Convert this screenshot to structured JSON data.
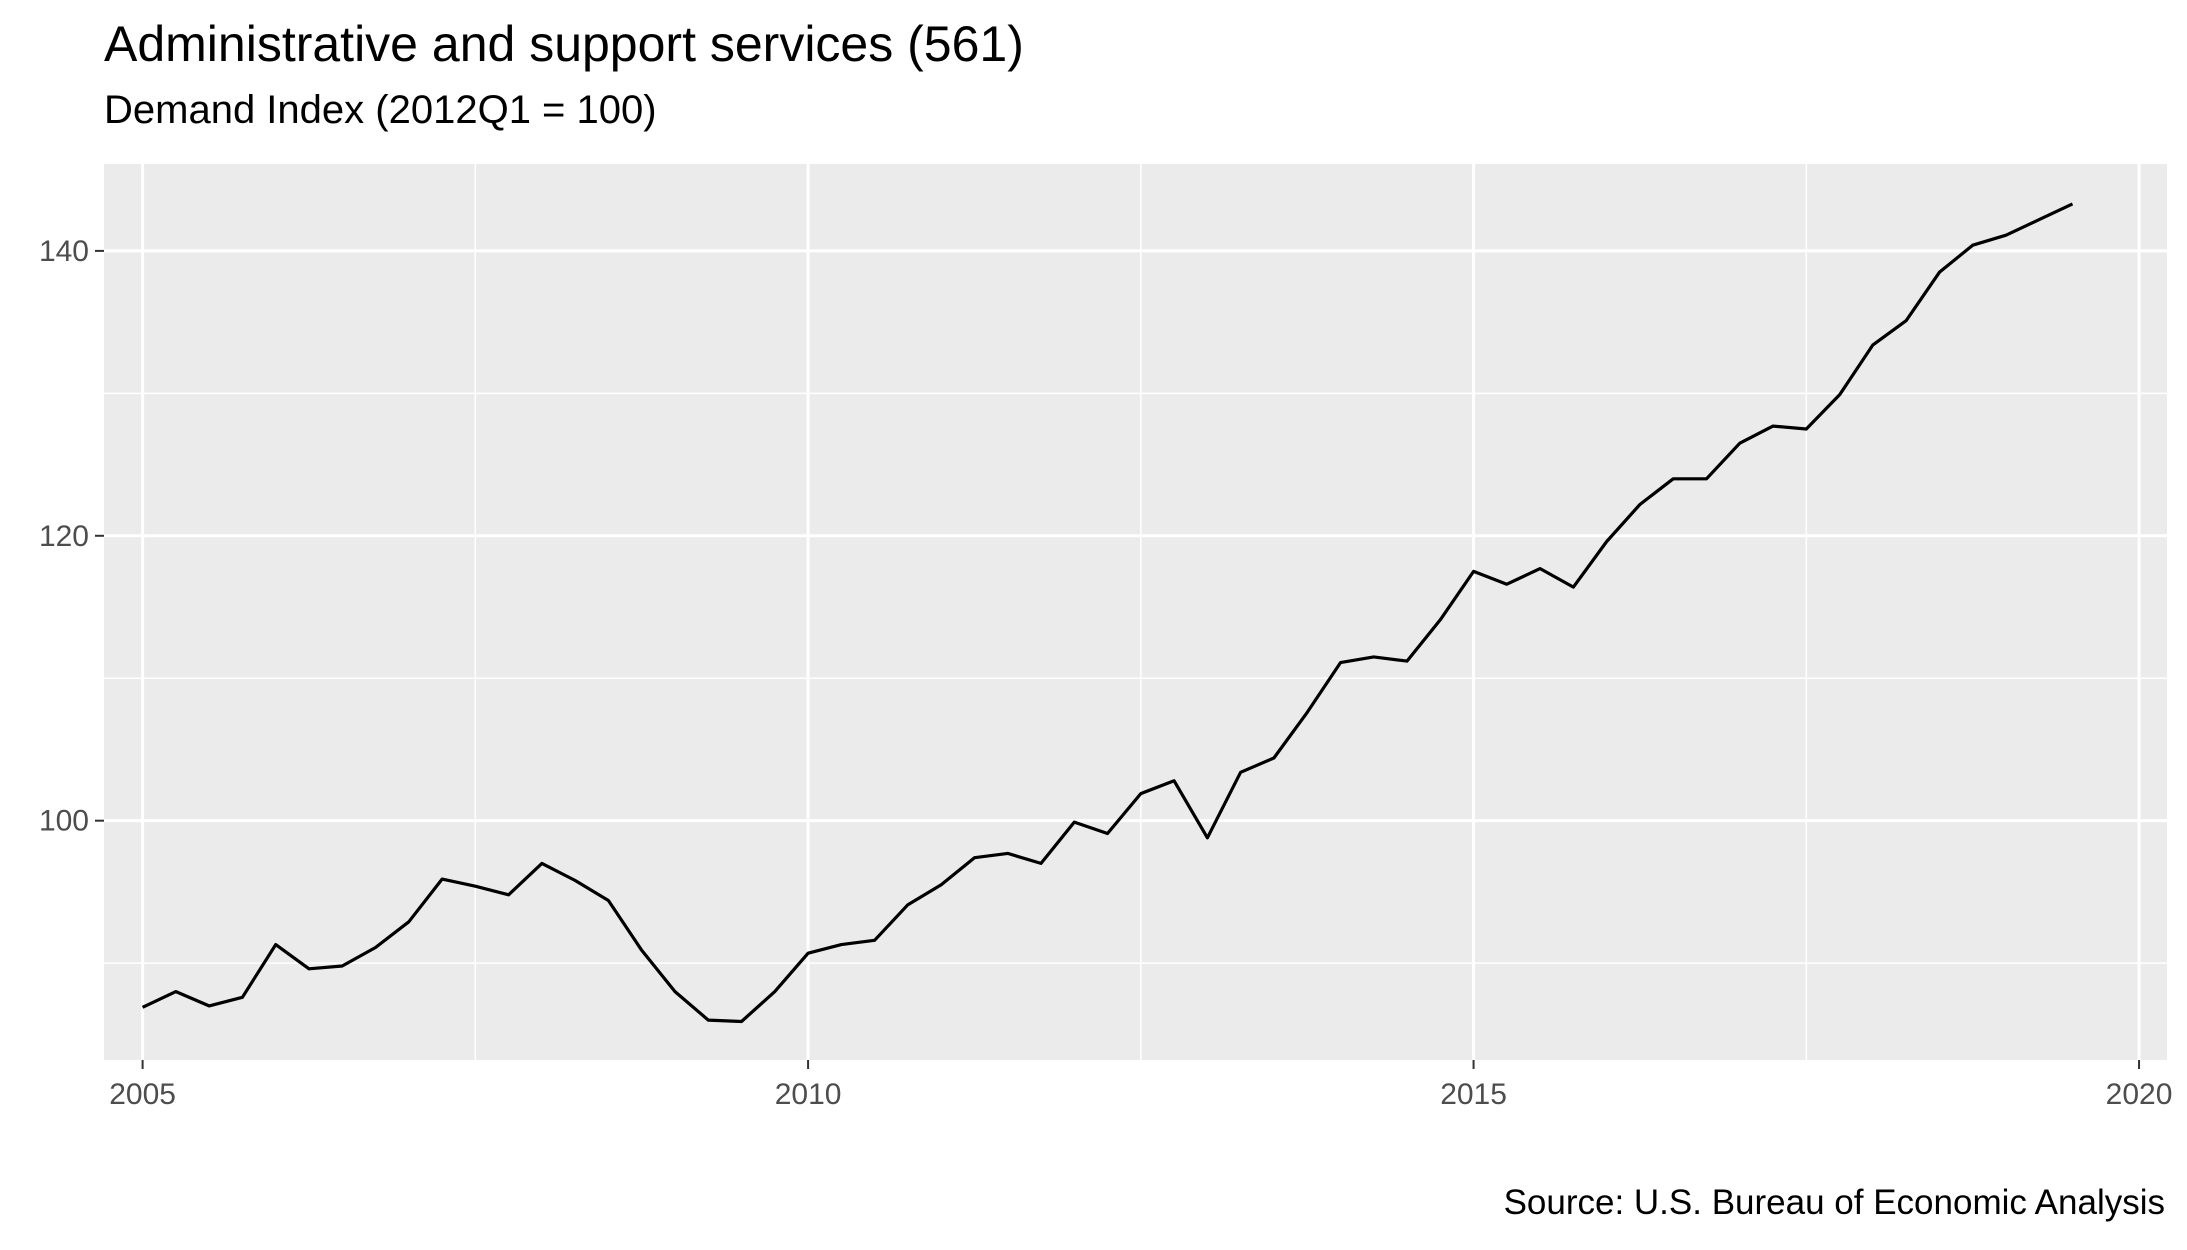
{
  "chart_data": {
    "type": "line",
    "title": "Administrative and support services (561)",
    "subtitle": "Demand Index (2012Q1 = 100)",
    "caption": "Source: U.S. Bureau of Economic Analysis",
    "xlabel": "",
    "ylabel": "",
    "xlim": [
      2004.71,
      2020.21
    ],
    "ylim": [
      83.2,
      146.1
    ],
    "x_ticks": [
      2005,
      2010,
      2015,
      2020
    ],
    "y_ticks": [
      100,
      120,
      140
    ],
    "grid": true,
    "legend": "none",
    "colors": {
      "panel": "#ebebeb",
      "grid": "#ffffff",
      "line": "#000000",
      "axis_text": "#4d4d4d"
    },
    "series": [
      {
        "x": [
          2005.0,
          2005.25,
          2005.5,
          2005.75,
          2006.0,
          2006.25,
          2006.5,
          2006.75,
          2007.0,
          2007.25,
          2007.5,
          2007.75,
          2008.0,
          2008.25,
          2008.5,
          2008.75,
          2009.0,
          2009.25,
          2009.5,
          2009.75,
          2010.0,
          2010.25,
          2010.5,
          2010.75,
          2011.0,
          2011.25,
          2011.5,
          2011.75,
          2012.0,
          2012.25,
          2012.5,
          2012.75,
          2013.0,
          2013.25,
          2013.5,
          2013.75,
          2014.0,
          2014.25,
          2014.5,
          2014.75,
          2015.0,
          2015.25,
          2015.5,
          2015.75,
          2016.0,
          2016.25,
          2016.5,
          2016.75,
          2017.0,
          2017.25,
          2017.5,
          2017.75,
          2018.0,
          2018.25,
          2018.5,
          2018.75,
          2019.0,
          2019.25,
          2019.5
        ],
        "y": [
          86.9,
          88.0,
          87.0,
          87.6,
          91.3,
          89.6,
          89.8,
          91.1,
          92.9,
          95.9,
          95.4,
          94.8,
          97.0,
          95.8,
          94.4,
          90.9,
          88.0,
          86.0,
          85.9,
          88.0,
          90.7,
          91.3,
          91.6,
          94.1,
          95.5,
          97.4,
          97.7,
          97.0,
          99.9,
          99.1,
          101.9,
          102.8,
          98.8,
          103.4,
          104.4,
          107.6,
          111.1,
          111.5,
          111.2,
          114.1,
          117.5,
          116.6,
          117.7,
          116.4,
          119.6,
          122.2,
          124.0,
          124.0,
          126.5,
          127.7,
          127.5,
          129.9,
          133.4,
          135.1,
          138.5,
          140.4,
          141.1,
          142.2,
          143.3
        ]
      }
    ]
  }
}
